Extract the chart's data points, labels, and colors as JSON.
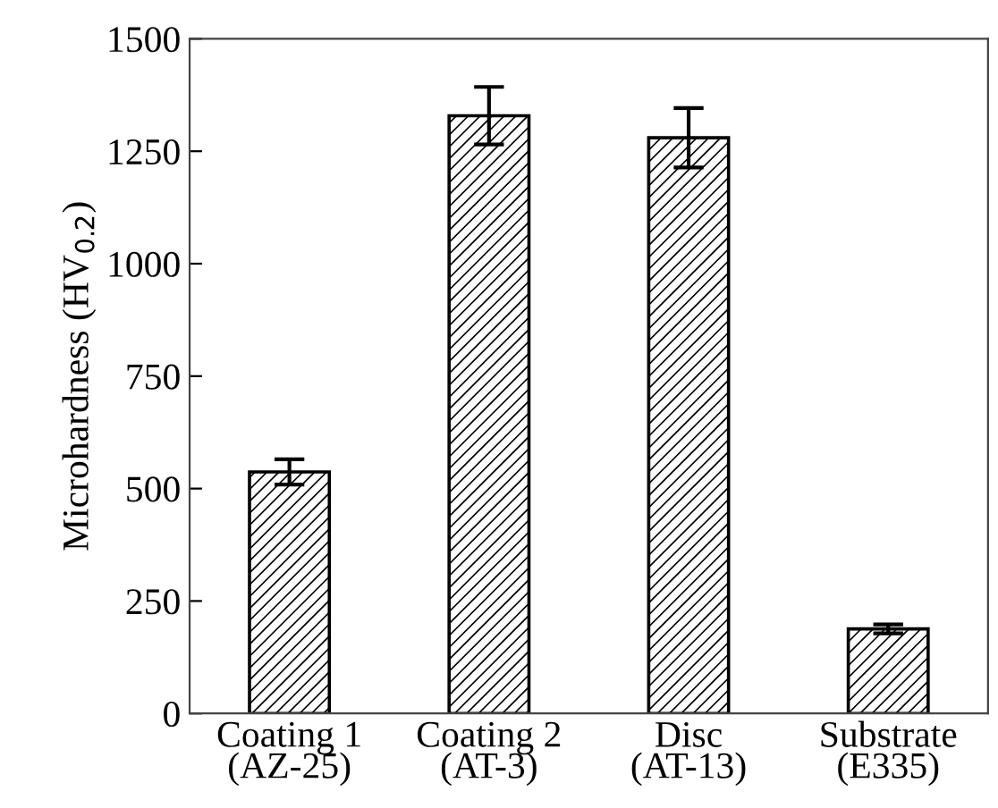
{
  "chart_data": {
    "type": "bar",
    "ylabel": "Microhardness (HV$_{0.2}$)",
    "categories": [
      "Coating 1\n(AZ-25)",
      "Coating 2\n(AT-3)",
      "Disc\n(AT-13)",
      "Substrate\n(E335)"
    ],
    "values": [
      537,
      1329,
      1280,
      188
    ],
    "errors": [
      28,
      64,
      66,
      10
    ],
    "color": "#000000",
    "ylim": [
      0,
      1500
    ],
    "yticks": [
      0,
      250,
      500,
      750,
      1000,
      1250,
      1500
    ],
    "grid": false
  }
}
